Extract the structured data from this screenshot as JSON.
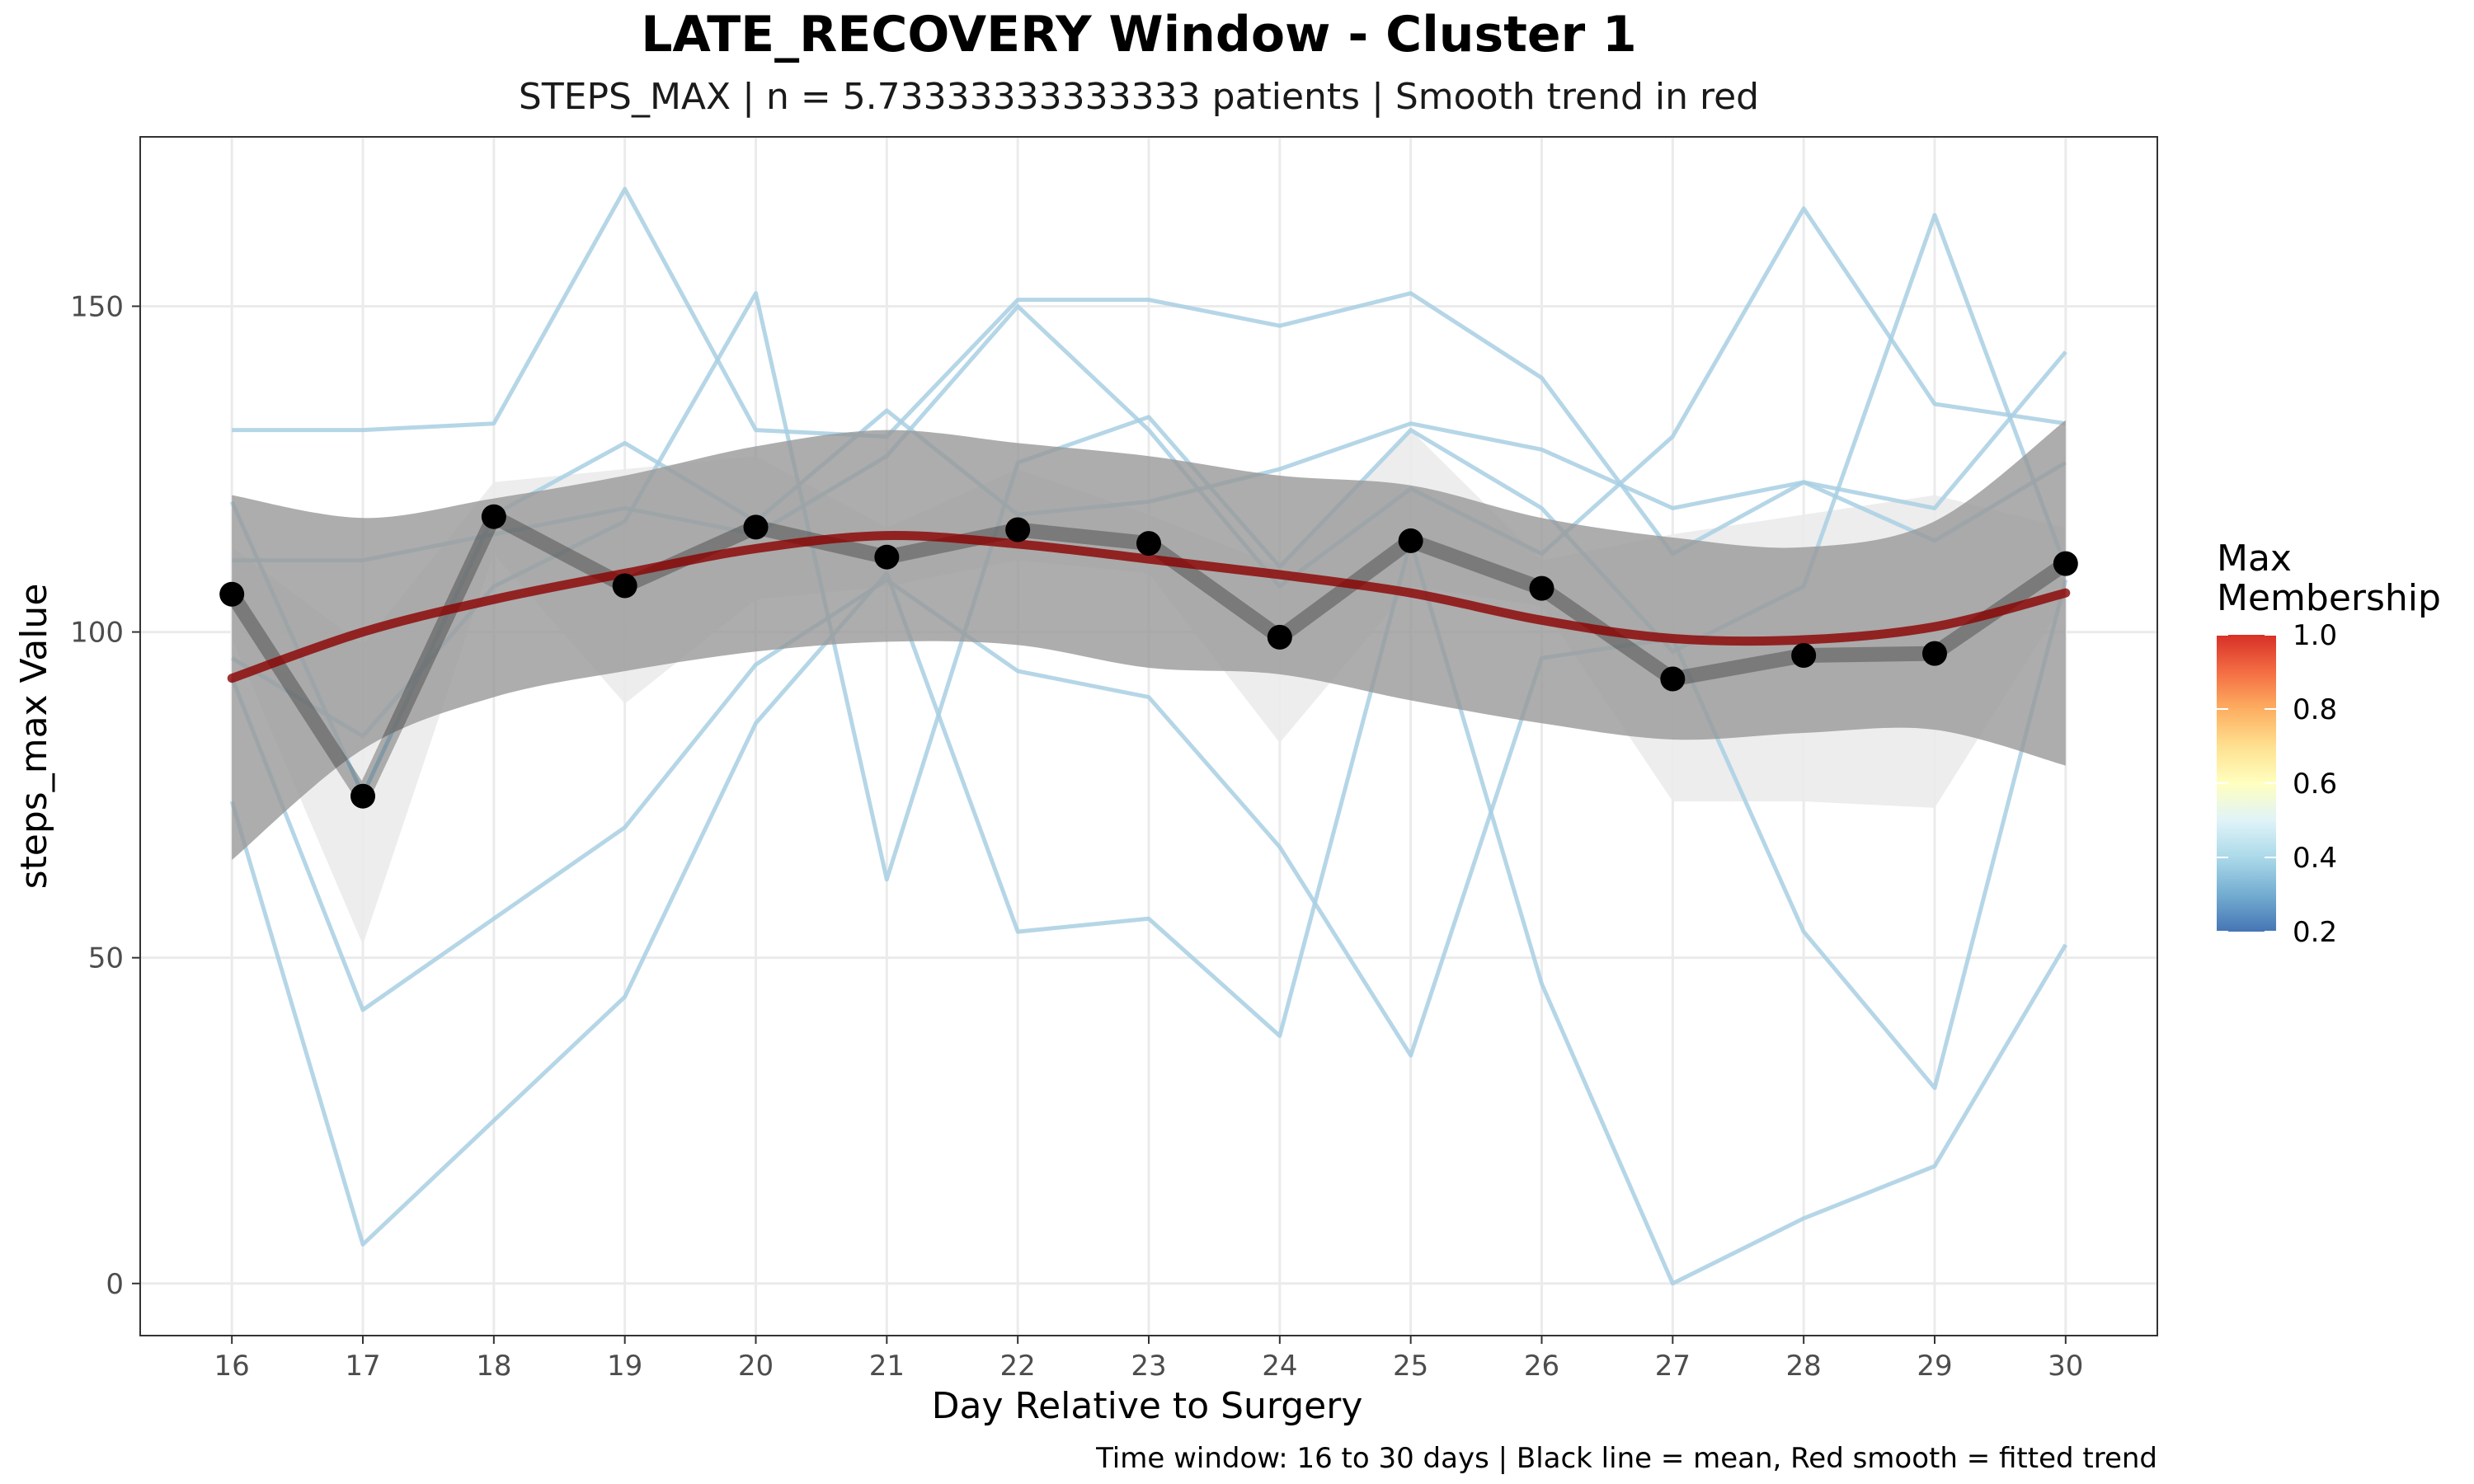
{
  "chart_data": {
    "type": "line",
    "title": "LATE_RECOVERY Window - Cluster 1",
    "subtitle": "STEPS_MAX | n = 5.73333333333333 patients | Smooth trend in red",
    "xlabel": "Day Relative to Surgery",
    "ylabel": "steps_max Value",
    "caption": "Time window: 16 to 30 days | Black line = mean, Red smooth = fitted trend",
    "x": [
      16,
      17,
      18,
      19,
      20,
      21,
      22,
      23,
      24,
      25,
      26,
      27,
      28,
      29,
      30
    ],
    "xlim": [
      15.3,
      30.7
    ],
    "ylim": [
      -8,
      176
    ],
    "x_ticks": [
      "16",
      "17",
      "18",
      "19",
      "20",
      "21",
      "22",
      "23",
      "24",
      "25",
      "26",
      "27",
      "28",
      "29",
      "30"
    ],
    "y_ticks": [
      0,
      50,
      100,
      150
    ],
    "y_tick_labels": [
      "0",
      "50",
      "100",
      "150"
    ],
    "grid": true,
    "patient_series": [
      {
        "values": [
          131,
          131,
          132,
          168,
          131,
          130,
          151,
          151,
          147,
          152,
          139,
          112,
          123,
          114,
          126
        ]
      },
      {
        "values": [
          120,
          75,
          118,
          129,
          117,
          134,
          118,
          120,
          125,
          132,
          128,
          119,
          123,
          119,
          143
        ]
      },
      {
        "values": [
          111,
          111,
          115,
          119,
          115,
          127,
          150,
          131,
          107,
          122,
          112,
          130,
          165,
          135,
          132
        ]
      },
      {
        "values": [
          93,
          42,
          56,
          70,
          95,
          108,
          94,
          90,
          67,
          35,
          96,
          99,
          54,
          30,
          108
        ]
      },
      {
        "values": [
          74,
          6,
          25,
          44,
          86,
          109,
          54,
          56,
          38,
          114,
          46,
          0,
          10,
          18,
          52
        ]
      },
      {
        "values": [
          96,
          84,
          107,
          117,
          152,
          62,
          126,
          133,
          110,
          131,
          119,
          97,
          107,
          164,
          110
        ]
      }
    ],
    "mean_series": {
      "name": "mean",
      "values": [
        105.8,
        74.8,
        117.7,
        107.1,
        116.1,
        111.5,
        115.7,
        113.6,
        99.2,
        114.0,
        106.7,
        92.8,
        96.4,
        96.7,
        110.5
      ]
    },
    "mean_band": {
      "lower": [
        99,
        52,
        112,
        89,
        105,
        107,
        111,
        109,
        83,
        107,
        104,
        74,
        74,
        73,
        105
      ],
      "upper": [
        113,
        98,
        123,
        125,
        127,
        116,
        125,
        118,
        110,
        131,
        111,
        115,
        118,
        121,
        116
      ]
    },
    "smooth_series": {
      "name": "smooth",
      "values": [
        92.9,
        100.0,
        105.0,
        109.0,
        112.8,
        114.8,
        113.5,
        111.2,
        108.8,
        106.0,
        101.8,
        99.0,
        98.8,
        100.8,
        106.0
      ],
      "lower": [
        65,
        82,
        90,
        94,
        97,
        98.5,
        98,
        94.5,
        93.5,
        89.5,
        86,
        83.5,
        84.5,
        85,
        79.5
      ],
      "upper": [
        121,
        117.5,
        120.5,
        124,
        128.5,
        131,
        129,
        127,
        124,
        122.5,
        117.5,
        114.5,
        113,
        117,
        132.5
      ]
    },
    "colors": {
      "patient_line": "#a8cfe3",
      "mean_line": "#000000",
      "mean_band": "#ebebeb",
      "smooth_line": "#8b0000",
      "smooth_band": "#999999",
      "grid": "#ebebeb",
      "panel_border": "#333333"
    },
    "legend": {
      "title": "Max\nMembership",
      "position": "right",
      "range": [
        0.2,
        1.0
      ],
      "labels": [
        "1.0",
        "0.8",
        "0.6",
        "0.4",
        "0.2"
      ],
      "gradient_colors": [
        "#d73027",
        "#f46d43",
        "#fdae61",
        "#fee090",
        "#ffffbf",
        "#e0f3f8",
        "#abd9e9",
        "#74add1",
        "#4575b4"
      ]
    }
  }
}
